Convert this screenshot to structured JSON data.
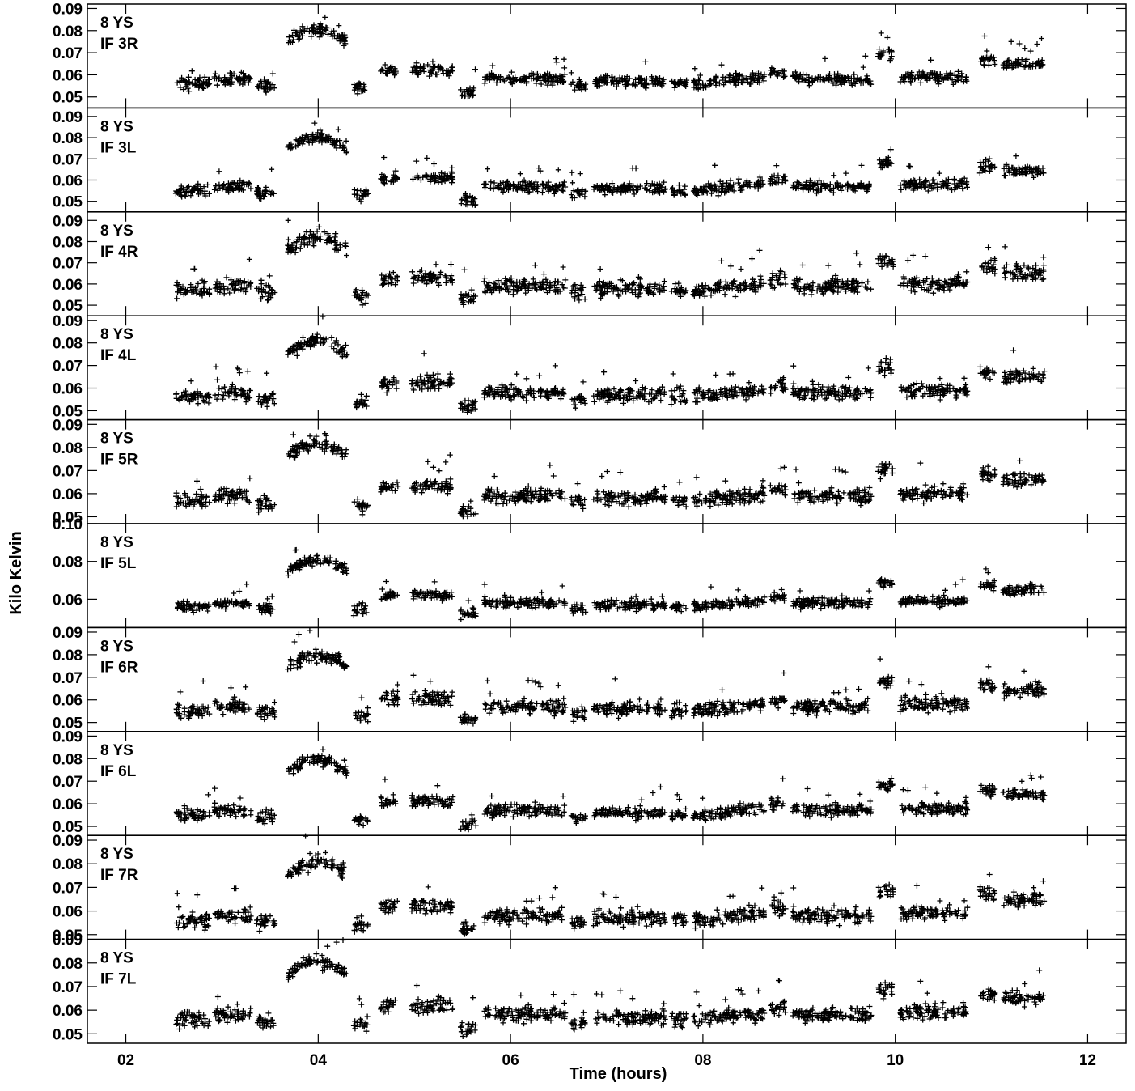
{
  "chart_data": {
    "type": "scatter",
    "title": "",
    "xlabel": "Time (hours)",
    "ylabel": "Kilo Kelvin",
    "xlim": [
      1.6,
      12.4
    ],
    "x_ticks": [
      2,
      4,
      6,
      8,
      10,
      12
    ],
    "x_tick_labels": [
      "02",
      "04",
      "06",
      "08",
      "10",
      "12"
    ],
    "marker": "+",
    "marker_color": "#000000",
    "grid": false,
    "legend": "none",
    "scans": [
      {
        "start": 2.52,
        "end": 2.87,
        "offset": -0.002
      },
      {
        "start": 2.92,
        "end": 3.3,
        "offset": 0.0
      },
      {
        "start": 3.36,
        "end": 3.55,
        "offset": -0.003
      },
      {
        "start": 3.68,
        "end": 4.3,
        "offset": 0.017,
        "hump": 0.006
      },
      {
        "start": 4.37,
        "end": 4.52,
        "offset": -0.004
      },
      {
        "start": 4.65,
        "end": 4.83,
        "offset": 0.004
      },
      {
        "start": 4.97,
        "end": 5.4,
        "offset": 0.004
      },
      {
        "start": 5.48,
        "end": 5.64,
        "offset": -0.006
      },
      {
        "start": 5.72,
        "end": 6.57,
        "offset": 0.0
      },
      {
        "start": 6.63,
        "end": 6.78,
        "offset": -0.003
      },
      {
        "start": 6.86,
        "end": 7.61,
        "offset": -0.001
      },
      {
        "start": 7.67,
        "end": 7.83,
        "offset": -0.002
      },
      {
        "start": 7.9,
        "end": 8.64,
        "offset": -0.002,
        "slope": 0.003
      },
      {
        "start": 8.7,
        "end": 8.86,
        "offset": 0.003
      },
      {
        "start": 8.93,
        "end": 9.75,
        "offset": 0.0
      },
      {
        "start": 9.82,
        "end": 9.98,
        "offset": 0.011
      },
      {
        "start": 10.05,
        "end": 10.75,
        "offset": 0.001
      },
      {
        "start": 10.88,
        "end": 11.04,
        "offset": 0.009
      },
      {
        "start": 11.12,
        "end": 11.55,
        "offset": 0.007
      }
    ],
    "panels": [
      {
        "label1": "8 YS",
        "label2": "IF 3R",
        "ylim": [
          0.045,
          0.092
        ],
        "yticks": [
          0.05,
          0.06,
          0.07,
          0.08,
          0.09
        ],
        "ytick_labels": [
          "0.05",
          "0.06",
          "0.07",
          "0.08",
          "0.09"
        ],
        "base": 0.058,
        "noise": 0.0025
      },
      {
        "label1": "8 YS",
        "label2": "IF 3L",
        "ylim": [
          0.045,
          0.094
        ],
        "yticks": [
          0.05,
          0.06,
          0.07,
          0.08,
          0.09
        ],
        "ytick_labels": [
          "0.05",
          "0.06",
          "0.07",
          "0.08",
          "0.09"
        ],
        "base": 0.057,
        "noise": 0.0025
      },
      {
        "label1": "8 YS",
        "label2": "IF 4R",
        "ylim": [
          0.045,
          0.094
        ],
        "yticks": [
          0.05,
          0.06,
          0.07,
          0.08,
          0.09
        ],
        "ytick_labels": [
          "0.05",
          "0.06",
          "0.07",
          "0.08",
          "0.09"
        ],
        "base": 0.059,
        "noise": 0.0035
      },
      {
        "label1": "8 YS",
        "label2": "IF 4L",
        "ylim": [
          0.046,
          0.092
        ],
        "yticks": [
          0.05,
          0.06,
          0.07,
          0.08,
          0.09
        ],
        "ytick_labels": [
          "0.05",
          "0.06",
          "0.07",
          "0.08",
          "0.09"
        ],
        "base": 0.058,
        "noise": 0.003
      },
      {
        "label1": "8 YS",
        "label2": "IF 5R",
        "ylim": [
          0.047,
          0.092
        ],
        "yticks": [
          0.05,
          0.06,
          0.07,
          0.08,
          0.09
        ],
        "ytick_labels": [
          "0.05",
          "0.06",
          "0.07",
          "0.08",
          "0.09"
        ],
        "base": 0.059,
        "noise": 0.003
      },
      {
        "label1": "8 YS",
        "label2": "IF 5L",
        "ylim": [
          0.045,
          0.1
        ],
        "yticks": [
          0.06,
          0.08,
          0.1
        ],
        "ytick_labels": [
          "0.06",
          "0.08",
          "0.10"
        ],
        "base": 0.058,
        "noise": 0.0025
      },
      {
        "label1": "8 YS",
        "label2": "IF 6R",
        "ylim": [
          0.046,
          0.092
        ],
        "yticks": [
          0.05,
          0.06,
          0.07,
          0.08,
          0.09
        ],
        "ytick_labels": [
          "0.05",
          "0.06",
          "0.07",
          "0.08",
          "0.09"
        ],
        "base": 0.057,
        "noise": 0.003
      },
      {
        "label1": "8 YS",
        "label2": "IF 6L",
        "ylim": [
          0.046,
          0.092
        ],
        "yticks": [
          0.05,
          0.06,
          0.07,
          0.08,
          0.09
        ],
        "ytick_labels": [
          "0.05",
          "0.06",
          "0.07",
          "0.08",
          "0.09"
        ],
        "base": 0.057,
        "noise": 0.0025
      },
      {
        "label1": "8 YS",
        "label2": "IF 7R",
        "ylim": [
          0.048,
          0.092
        ],
        "yticks": [
          0.05,
          0.06,
          0.07,
          0.08,
          0.09
        ],
        "ytick_labels": [
          "0.05",
          "0.06",
          "0.07",
          "0.08",
          "0.09"
        ],
        "base": 0.058,
        "noise": 0.003
      },
      {
        "label1": "8 YS",
        "label2": "IF 7L",
        "ylim": [
          0.046,
          0.09
        ],
        "yticks": [
          0.05,
          0.06,
          0.07,
          0.08,
          0.09
        ],
        "ytick_labels": [
          "0.05",
          "0.06",
          "0.07",
          "0.08",
          "0.09"
        ],
        "base": 0.058,
        "noise": 0.003
      }
    ]
  }
}
